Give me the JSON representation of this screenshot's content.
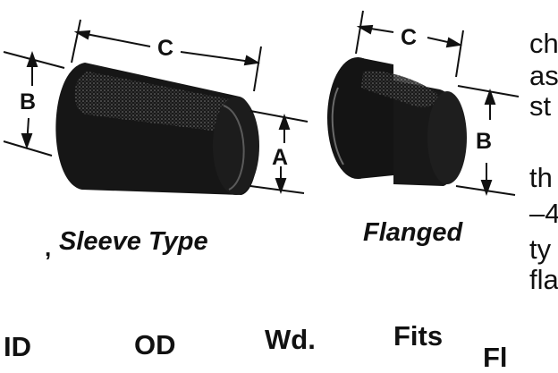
{
  "figures": {
    "sleeve": {
      "caption": "Sleeve Type",
      "dim_c": "C",
      "dim_b": "B",
      "dim_a": "A"
    },
    "flanged": {
      "caption": "Flanged",
      "dim_c": "C",
      "dim_b": "B"
    }
  },
  "side_text": [
    "ch",
    "as",
    "st",
    "th",
    "–4",
    "ty",
    "fla"
  ],
  "table_headers": [
    "ID",
    "OD",
    "Wd.",
    "Fits",
    "Fl"
  ],
  "stray_mark": ",",
  "colors": {
    "ink": "#111111",
    "part_fill": "#1a1a1a",
    "paper": "#ffffff"
  }
}
